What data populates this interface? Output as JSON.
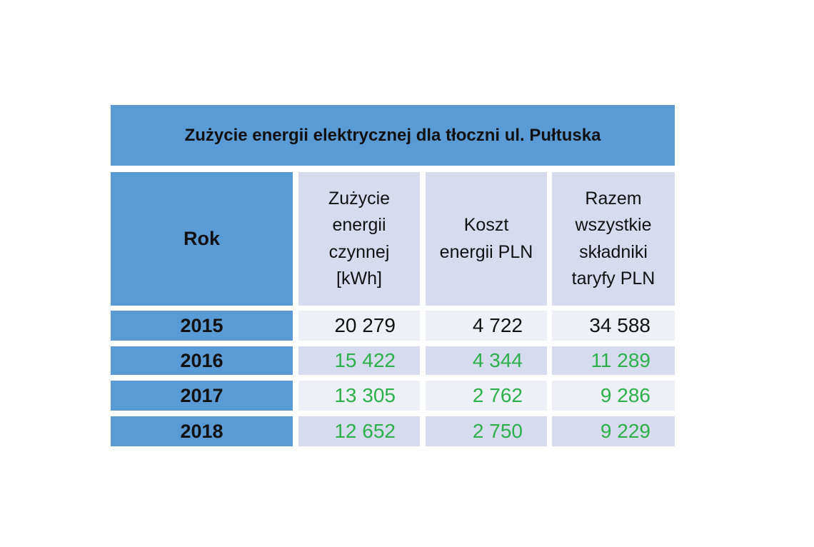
{
  "title": "Zużycie energii elektrycznej dla tłoczni ul. Pułtuska",
  "header": [
    {
      "lines": [
        "Rok"
      ]
    },
    {
      "lines": [
        "Zużycie",
        "energii",
        "czynnej",
        "[kWh]"
      ]
    },
    {
      "lines": [
        "Koszt",
        "energii PLN"
      ]
    },
    {
      "lines": [
        "Razem",
        "wszystkie",
        "składniki",
        "taryfy PLN"
      ]
    }
  ],
  "rows": [
    {
      "year": "2015",
      "values": [
        "20 279",
        "4 722",
        "34 588"
      ],
      "text_color": "#111111"
    },
    {
      "year": "2016",
      "values": [
        "15 422",
        "4 344",
        "11 289"
      ],
      "text_color": "#2bb04a"
    },
    {
      "year": "2017",
      "values": [
        "13 305",
        "2 762",
        "9 286"
      ],
      "text_color": "#2bb04a"
    },
    {
      "year": "2018",
      "values": [
        "12 652",
        "2 750",
        "9 229"
      ],
      "text_color": "#2bb04a"
    }
  ]
}
